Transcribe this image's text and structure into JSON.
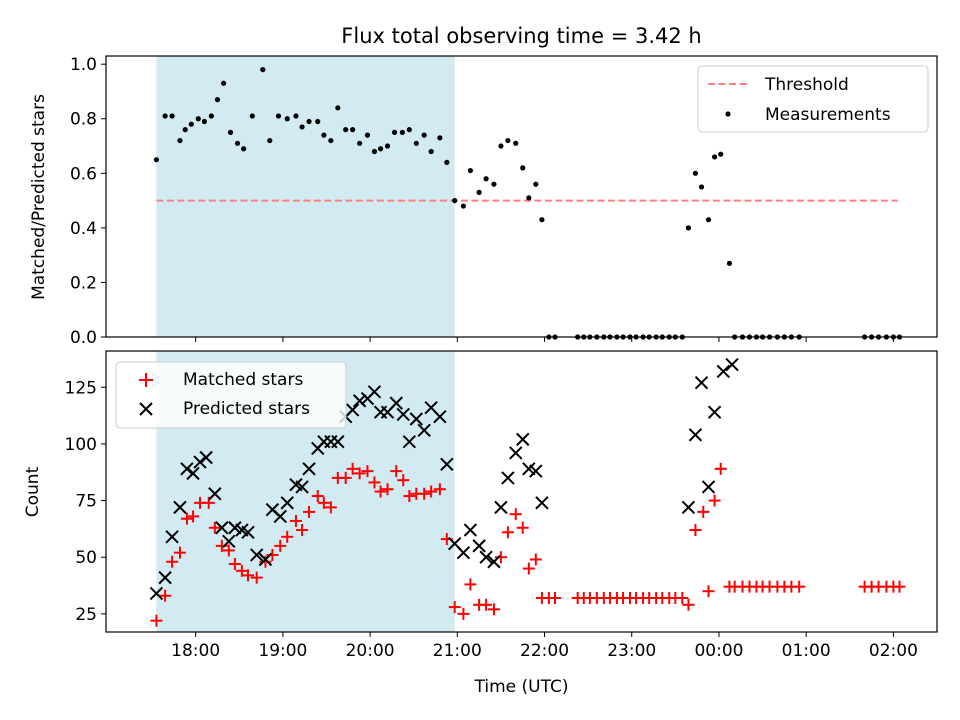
{
  "chart_data": [
    {
      "type": "scatter",
      "title": "Flux total observing time = 3.42 h",
      "ylabel": "Matched/Predicted stars",
      "xlabel": "",
      "xlim_hours": [
        16.972,
        26.5
      ],
      "ylim": [
        0,
        1.03
      ],
      "yticks": [
        "0.0",
        "0.2",
        "0.4",
        "0.6",
        "0.8",
        "1.0"
      ],
      "grid": false,
      "legend_position": "top-right",
      "shaded_interval_hours": [
        17.55,
        20.97
      ],
      "shade_color": "#add8e6",
      "threshold": {
        "name": "Threshold",
        "value": 0.5,
        "x_from": 17.55,
        "x_to": 26.05,
        "color": "#ff7f7f",
        "style": "dashed"
      },
      "series": [
        {
          "name": "Measurements",
          "color": "#000000",
          "marker": "dot",
          "points": [
            [
              17.55,
              0.65
            ],
            [
              17.65,
              0.81
            ],
            [
              17.73,
              0.81
            ],
            [
              17.82,
              0.72
            ],
            [
              17.88,
              0.76
            ],
            [
              17.95,
              0.78
            ],
            [
              18.03,
              0.8
            ],
            [
              18.1,
              0.79
            ],
            [
              18.18,
              0.81
            ],
            [
              18.25,
              0.87
            ],
            [
              18.32,
              0.93
            ],
            [
              18.4,
              0.75
            ],
            [
              18.48,
              0.71
            ],
            [
              18.55,
              0.69
            ],
            [
              18.65,
              0.81
            ],
            [
              18.77,
              0.98
            ],
            [
              18.85,
              0.72
            ],
            [
              18.95,
              0.81
            ],
            [
              19.05,
              0.8
            ],
            [
              19.15,
              0.81
            ],
            [
              19.22,
              0.77
            ],
            [
              19.3,
              0.79
            ],
            [
              19.4,
              0.79
            ],
            [
              19.47,
              0.74
            ],
            [
              19.55,
              0.72
            ],
            [
              19.63,
              0.84
            ],
            [
              19.72,
              0.76
            ],
            [
              19.8,
              0.76
            ],
            [
              19.88,
              0.71
            ],
            [
              19.97,
              0.74
            ],
            [
              20.05,
              0.68
            ],
            [
              20.12,
              0.69
            ],
            [
              20.2,
              0.7
            ],
            [
              20.28,
              0.75
            ],
            [
              20.37,
              0.75
            ],
            [
              20.45,
              0.76
            ],
            [
              20.53,
              0.71
            ],
            [
              20.62,
              0.74
            ],
            [
              20.7,
              0.68
            ],
            [
              20.8,
              0.73
            ],
            [
              20.88,
              0.64
            ],
            [
              20.97,
              0.5
            ],
            [
              21.07,
              0.48
            ],
            [
              21.15,
              0.61
            ],
            [
              21.25,
              0.53
            ],
            [
              21.33,
              0.58
            ],
            [
              21.42,
              0.56
            ],
            [
              21.5,
              0.7
            ],
            [
              21.58,
              0.72
            ],
            [
              21.67,
              0.71
            ],
            [
              21.75,
              0.62
            ],
            [
              21.82,
              0.51
            ],
            [
              21.9,
              0.56
            ],
            [
              21.97,
              0.43
            ],
            [
              22.05,
              0.0
            ],
            [
              22.12,
              0.0
            ],
            [
              22.38,
              0.0
            ],
            [
              22.45,
              0.0
            ],
            [
              22.52,
              0.0
            ],
            [
              22.6,
              0.0
            ],
            [
              22.68,
              0.0
            ],
            [
              22.75,
              0.0
            ],
            [
              22.83,
              0.0
            ],
            [
              22.9,
              0.0
            ],
            [
              22.98,
              0.0
            ],
            [
              23.05,
              0.0
            ],
            [
              23.13,
              0.0
            ],
            [
              23.2,
              0.0
            ],
            [
              23.28,
              0.0
            ],
            [
              23.35,
              0.0
            ],
            [
              23.43,
              0.0
            ],
            [
              23.5,
              0.0
            ],
            [
              23.58,
              0.0
            ],
            [
              23.65,
              0.4
            ],
            [
              23.73,
              0.6
            ],
            [
              23.8,
              0.55
            ],
            [
              23.88,
              0.43
            ],
            [
              23.95,
              0.66
            ],
            [
              24.02,
              0.67
            ],
            [
              24.12,
              0.27
            ],
            [
              24.18,
              0.0
            ],
            [
              24.27,
              0.0
            ],
            [
              24.35,
              0.0
            ],
            [
              24.43,
              0.0
            ],
            [
              24.5,
              0.0
            ],
            [
              24.58,
              0.0
            ],
            [
              24.67,
              0.0
            ],
            [
              24.75,
              0.0
            ],
            [
              24.83,
              0.0
            ],
            [
              24.92,
              0.0
            ],
            [
              25.67,
              0.0
            ],
            [
              25.75,
              0.0
            ],
            [
              25.83,
              0.0
            ],
            [
              25.92,
              0.0
            ],
            [
              26.0,
              0.0
            ],
            [
              26.07,
              0.0
            ]
          ]
        }
      ]
    },
    {
      "type": "scatter",
      "title": "",
      "xlabel": "Time (UTC)",
      "ylabel": "Count",
      "xlim_hours": [
        16.972,
        26.5
      ],
      "ylim": [
        17,
        141
      ],
      "yticks": [
        "25",
        "50",
        "75",
        "100",
        "125"
      ],
      "xtick_hours": [
        18,
        19,
        20,
        21,
        22,
        23,
        24,
        25,
        26
      ],
      "xtick_labels": [
        "18:00",
        "19:00",
        "20:00",
        "21:00",
        "22:00",
        "23:00",
        "00:00",
        "01:00",
        "02:00"
      ],
      "grid": false,
      "legend_position": "top-left",
      "shaded_interval_hours": [
        17.55,
        20.97
      ],
      "series": [
        {
          "name": "Matched stars",
          "color": "#ff0000",
          "marker": "plus",
          "points": [
            [
              17.55,
              22
            ],
            [
              17.65,
              33
            ],
            [
              17.73,
              48
            ],
            [
              17.82,
              52
            ],
            [
              17.9,
              67
            ],
            [
              17.97,
              68
            ],
            [
              18.05,
              74
            ],
            [
              18.15,
              74
            ],
            [
              18.22,
              63
            ],
            [
              18.3,
              55
            ],
            [
              18.38,
              53
            ],
            [
              18.45,
              47
            ],
            [
              18.53,
              44
            ],
            [
              18.6,
              42
            ],
            [
              18.7,
              41
            ],
            [
              18.8,
              48
            ],
            [
              18.88,
              51
            ],
            [
              18.97,
              55
            ],
            [
              19.05,
              59
            ],
            [
              19.15,
              66
            ],
            [
              19.22,
              62
            ],
            [
              19.3,
              70
            ],
            [
              19.4,
              77
            ],
            [
              19.47,
              74
            ],
            [
              19.55,
              72
            ],
            [
              19.63,
              85
            ],
            [
              19.72,
              85
            ],
            [
              19.8,
              89
            ],
            [
              19.88,
              87
            ],
            [
              19.97,
              88
            ],
            [
              20.05,
              83
            ],
            [
              20.12,
              79
            ],
            [
              20.2,
              80
            ],
            [
              20.3,
              88
            ],
            [
              20.38,
              84
            ],
            [
              20.45,
              77
            ],
            [
              20.53,
              78
            ],
            [
              20.62,
              78
            ],
            [
              20.7,
              79
            ],
            [
              20.8,
              80
            ],
            [
              20.88,
              58
            ],
            [
              20.97,
              28
            ],
            [
              21.07,
              25
            ],
            [
              21.15,
              38
            ],
            [
              21.25,
              29
            ],
            [
              21.33,
              29
            ],
            [
              21.42,
              27
            ],
            [
              21.5,
              50
            ],
            [
              21.58,
              61
            ],
            [
              21.67,
              69
            ],
            [
              21.75,
              63
            ],
            [
              21.82,
              45
            ],
            [
              21.9,
              49
            ],
            [
              21.97,
              32
            ],
            [
              22.05,
              32
            ],
            [
              22.12,
              32
            ],
            [
              22.38,
              32
            ],
            [
              22.45,
              32
            ],
            [
              22.52,
              32
            ],
            [
              22.6,
              32
            ],
            [
              22.68,
              32
            ],
            [
              22.75,
              32
            ],
            [
              22.83,
              32
            ],
            [
              22.9,
              32
            ],
            [
              22.98,
              32
            ],
            [
              23.05,
              32
            ],
            [
              23.13,
              32
            ],
            [
              23.2,
              32
            ],
            [
              23.28,
              32
            ],
            [
              23.35,
              32
            ],
            [
              23.43,
              32
            ],
            [
              23.5,
              32
            ],
            [
              23.58,
              32
            ],
            [
              23.65,
              29
            ],
            [
              23.73,
              62
            ],
            [
              23.82,
              70
            ],
            [
              23.88,
              35
            ],
            [
              23.95,
              75
            ],
            [
              24.02,
              89
            ],
            [
              24.12,
              37
            ],
            [
              24.18,
              37
            ],
            [
              24.27,
              37
            ],
            [
              24.35,
              37
            ],
            [
              24.43,
              37
            ],
            [
              24.5,
              37
            ],
            [
              24.58,
              37
            ],
            [
              24.67,
              37
            ],
            [
              24.75,
              37
            ],
            [
              24.83,
              37
            ],
            [
              24.92,
              37
            ],
            [
              25.67,
              37
            ],
            [
              25.75,
              37
            ],
            [
              25.83,
              37
            ],
            [
              25.92,
              37
            ],
            [
              26.0,
              37
            ],
            [
              26.07,
              37
            ]
          ]
        },
        {
          "name": "Predicted stars",
          "color": "#000000",
          "marker": "x",
          "points": [
            [
              17.55,
              34
            ],
            [
              17.65,
              41
            ],
            [
              17.73,
              59
            ],
            [
              17.82,
              72
            ],
            [
              17.9,
              89
            ],
            [
              17.97,
              87
            ],
            [
              18.05,
              92
            ],
            [
              18.12,
              94
            ],
            [
              18.22,
              78
            ],
            [
              18.3,
              63
            ],
            [
              18.38,
              57
            ],
            [
              18.45,
              63
            ],
            [
              18.53,
              62
            ],
            [
              18.6,
              61
            ],
            [
              18.7,
              51
            ],
            [
              18.8,
              49
            ],
            [
              18.88,
              71
            ],
            [
              18.97,
              68
            ],
            [
              19.05,
              74
            ],
            [
              19.15,
              82
            ],
            [
              19.22,
              81
            ],
            [
              19.3,
              89
            ],
            [
              19.4,
              98
            ],
            [
              19.47,
              101
            ],
            [
              19.55,
              101
            ],
            [
              19.63,
              101
            ],
            [
              19.72,
              112
            ],
            [
              19.8,
              115
            ],
            [
              19.88,
              119
            ],
            [
              19.97,
              120
            ],
            [
              20.05,
              123
            ],
            [
              20.12,
              114
            ],
            [
              20.2,
              114
            ],
            [
              20.3,
              118
            ],
            [
              20.38,
              113
            ],
            [
              20.45,
              101
            ],
            [
              20.53,
              111
            ],
            [
              20.62,
              106
            ],
            [
              20.7,
              116
            ],
            [
              20.8,
              112
            ],
            [
              20.88,
              91
            ],
            [
              20.97,
              56
            ],
            [
              21.07,
              52
            ],
            [
              21.15,
              62
            ],
            [
              21.25,
              55
            ],
            [
              21.33,
              50
            ],
            [
              21.42,
              48
            ],
            [
              21.5,
              72
            ],
            [
              21.58,
              85
            ],
            [
              21.67,
              96
            ],
            [
              21.75,
              102
            ],
            [
              21.82,
              89
            ],
            [
              21.9,
              88
            ],
            [
              21.97,
              74
            ],
            [
              23.65,
              72
            ],
            [
              23.73,
              104
            ],
            [
              23.8,
              127
            ],
            [
              23.88,
              81
            ],
            [
              23.95,
              114
            ],
            [
              24.05,
              132
            ],
            [
              24.15,
              135
            ]
          ]
        }
      ]
    }
  ]
}
